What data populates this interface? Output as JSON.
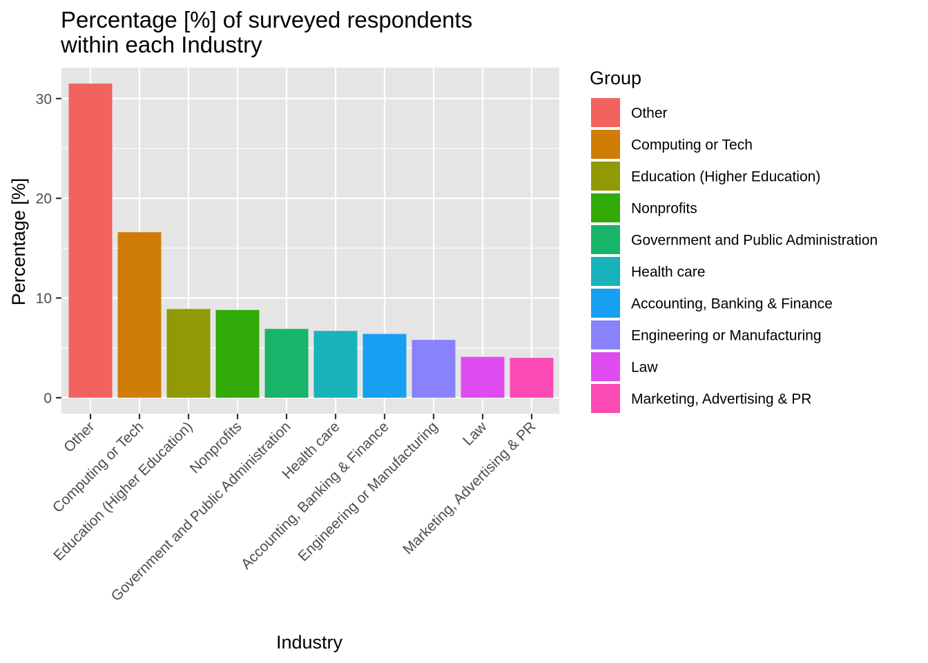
{
  "chart_data": {
    "type": "bar",
    "title": "Percentage [%] of surveyed respondents within each Industry",
    "title_lines": [
      "Percentage [%] of surveyed respondents",
      "within each Industry"
    ],
    "xlabel": "Industry",
    "ylabel": "Percentage [%]",
    "ylim": [
      -1.6,
      33.1
    ],
    "yticks": [
      0,
      10,
      20,
      30
    ],
    "ytick_labels": [
      "0",
      "10",
      "20",
      "30"
    ],
    "grid": true,
    "legend": {
      "title": "Group",
      "position": "right"
    },
    "categories": [
      "Other",
      "Computing or Tech",
      "Education (Higher Education)",
      "Nonprofits",
      "Government and Public Administration",
      "Health care",
      "Accounting, Banking & Finance",
      "Engineering or Manufacturing",
      "Law",
      "Marketing, Advertising & PR"
    ],
    "values": [
      31.5,
      16.6,
      8.9,
      8.8,
      6.9,
      6.7,
      6.4,
      5.8,
      4.1,
      4.0
    ],
    "colors": [
      "#F8766D",
      "#D39200",
      "#93AA00",
      "#00BA38",
      "#00C19F",
      "#00B9E3",
      "#00A5FF",
      "#8F7FFF",
      "#DB72FB",
      "#FF61C3"
    ],
    "fill_colors": [
      "#F2635E",
      "#CF7D07",
      "#919A05",
      "#32AA08",
      "#18B46A",
      "#18B3BA",
      "#17A0F1",
      "#8882FB",
      "#DE4CF0",
      "#FB4AB4"
    ],
    "panel_background": "#E5E5E5",
    "grid_color": "#FFFFFF"
  }
}
